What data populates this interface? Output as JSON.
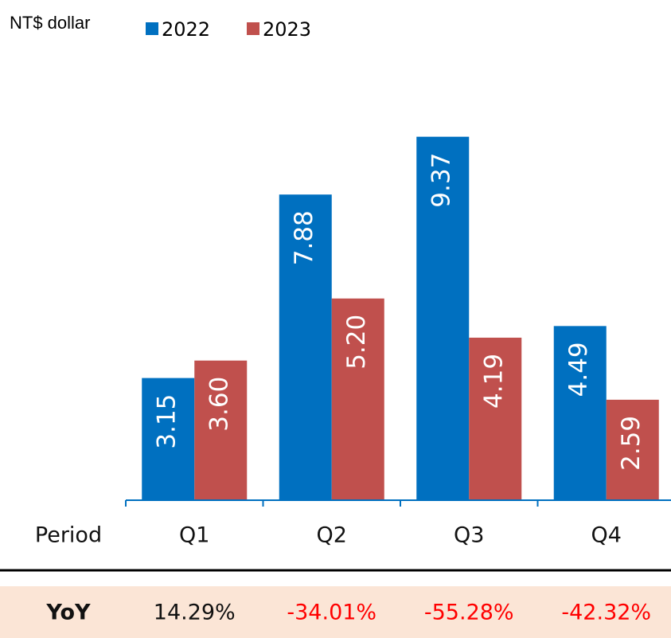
{
  "chart_data": {
    "type": "bar",
    "unit_label": "NT$ dollar",
    "x_label": "Period",
    "categories": [
      "Q1",
      "Q2",
      "Q3",
      "Q4"
    ],
    "series": [
      {
        "name": "2022",
        "color": "#0070c0",
        "values": [
          3.15,
          7.88,
          9.37,
          4.49
        ],
        "value_labels": [
          "3.15",
          "7.88",
          "9.37",
          "4.49"
        ]
      },
      {
        "name": "2023",
        "color": "#c0504d",
        "values": [
          3.6,
          5.2,
          4.19,
          2.59
        ],
        "value_labels": [
          "3.60",
          "5.20",
          "4.19",
          "2.59"
        ]
      }
    ],
    "ylim": [
      0,
      10
    ],
    "table": {
      "row_label": "YoY",
      "cells": [
        "14.29%",
        "-34.01%",
        "-55.28%",
        "-42.32%"
      ],
      "cell_colors": [
        "#111111",
        "#ff0000",
        "#ff0000",
        "#ff0000"
      ],
      "background": "#fbe5d6"
    }
  }
}
